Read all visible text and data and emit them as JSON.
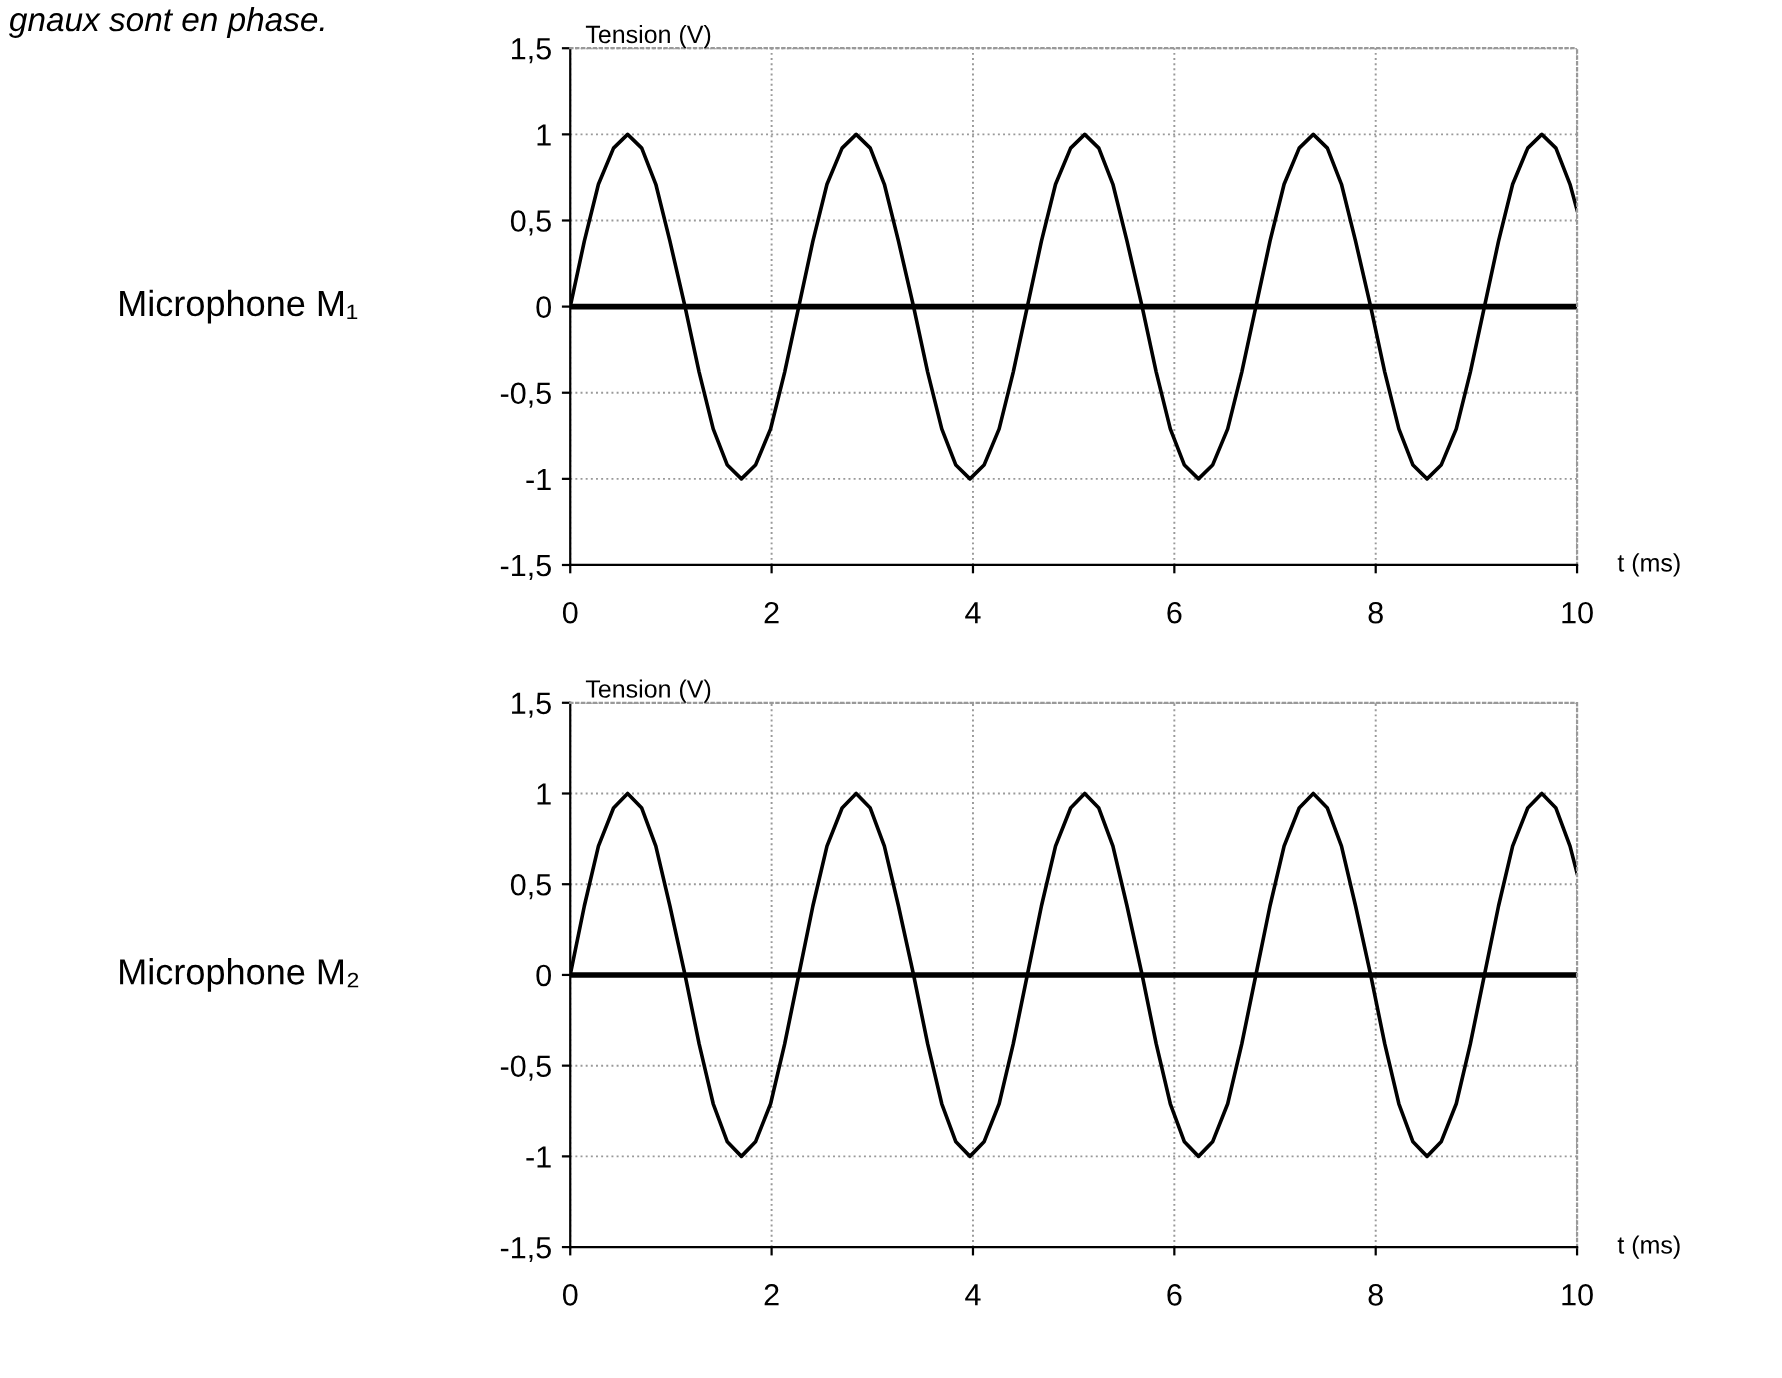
{
  "chart_data": [
    {
      "type": "line",
      "title": "gnaux sont en phase.",
      "annotations": [
        "Microphone M₁"
      ],
      "xlabel": "t (ms)",
      "ylabel": "Tension (V)",
      "x": [
        0,
        0.14,
        0.28,
        0.43,
        0.57,
        0.71,
        0.85,
        0.99,
        1.14,
        1.28,
        1.42,
        1.56,
        1.7,
        1.84,
        1.99,
        2.13,
        2.27,
        2.41,
        2.55,
        2.7,
        2.84,
        2.98,
        3.12,
        3.26,
        3.41,
        3.55,
        3.69,
        3.83,
        3.97,
        4.11,
        4.26,
        4.4,
        4.54,
        4.68,
        4.82,
        4.97,
        5.11,
        5.25,
        5.39,
        5.53,
        5.68,
        5.82,
        5.96,
        6.1,
        6.24,
        6.38,
        6.53,
        6.67,
        6.81,
        6.95,
        7.09,
        7.24,
        7.38,
        7.52,
        7.66,
        7.8,
        7.95,
        8.09,
        8.23,
        8.37,
        8.51,
        8.65,
        8.8,
        8.94,
        9.08,
        9.22,
        9.36,
        9.51,
        9.65,
        9.79,
        9.93,
        10
      ],
      "series": [
        {
          "color": "#000000",
          "values": [
            0,
            0.38,
            0.71,
            0.92,
            1,
            0.92,
            0.71,
            0.38,
            0,
            -0.38,
            -0.71,
            -0.92,
            -1,
            -0.92,
            -0.71,
            -0.38,
            0,
            0.38,
            0.71,
            0.92,
            1,
            0.92,
            0.71,
            0.38,
            0,
            -0.38,
            -0.71,
            -0.92,
            -1,
            -0.92,
            -0.71,
            -0.38,
            0,
            0.38,
            0.71,
            0.92,
            1,
            0.92,
            0.71,
            0.38,
            0,
            -0.38,
            -0.71,
            -0.92,
            -1,
            -0.92,
            -0.71,
            -0.38,
            0,
            0.38,
            0.71,
            0.92,
            1,
            0.92,
            0.71,
            0.38,
            0,
            -0.38,
            -0.71,
            -0.92,
            -1,
            -0.92,
            -0.71,
            -0.38,
            0,
            0.38,
            0.71,
            0.92,
            1,
            0.92,
            0.71,
            0.56
          ]
        }
      ],
      "xlim": [
        0,
        10
      ],
      "ylim": [
        -1.5,
        1.5
      ],
      "xticks": [
        0,
        2,
        4,
        6,
        8,
        10
      ],
      "yticks": [
        {
          "value": -1.5,
          "label": "-1,5"
        },
        -1,
        {
          "value": -0.5,
          "label": "-0,5"
        },
        0,
        {
          "value": 0.5,
          "label": "0,5"
        },
        1,
        {
          "value": 1.5,
          "label": "1,5"
        }
      ],
      "ref_lines": [
        {
          "axis": "y",
          "value": 0,
          "color": "#000000"
        }
      ],
      "grid": true,
      "legend": false,
      "line_style": "solid",
      "marker": "none"
    },
    {
      "type": "line",
      "annotations": [
        "Microphone M₂"
      ],
      "xlabel": "t (ms)",
      "ylabel": "Tension (V)",
      "x": [
        0,
        0.14,
        0.28,
        0.43,
        0.57,
        0.71,
        0.85,
        0.99,
        1.14,
        1.28,
        1.42,
        1.56,
        1.7,
        1.84,
        1.99,
        2.13,
        2.27,
        2.41,
        2.55,
        2.7,
        2.84,
        2.98,
        3.12,
        3.26,
        3.41,
        3.55,
        3.69,
        3.83,
        3.97,
        4.11,
        4.26,
        4.4,
        4.54,
        4.68,
        4.82,
        4.97,
        5.11,
        5.25,
        5.39,
        5.53,
        5.68,
        5.82,
        5.96,
        6.1,
        6.24,
        6.38,
        6.53,
        6.67,
        6.81,
        6.95,
        7.09,
        7.24,
        7.38,
        7.52,
        7.66,
        7.8,
        7.95,
        8.09,
        8.23,
        8.37,
        8.51,
        8.65,
        8.8,
        8.94,
        9.08,
        9.22,
        9.36,
        9.51,
        9.65,
        9.79,
        9.93,
        10
      ],
      "series": [
        {
          "color": "#000000",
          "values": [
            0,
            0.38,
            0.71,
            0.92,
            1,
            0.92,
            0.71,
            0.38,
            0,
            -0.38,
            -0.71,
            -0.92,
            -1,
            -0.92,
            -0.71,
            -0.38,
            0,
            0.38,
            0.71,
            0.92,
            1,
            0.92,
            0.71,
            0.38,
            0,
            -0.38,
            -0.71,
            -0.92,
            -1,
            -0.92,
            -0.71,
            -0.38,
            0,
            0.38,
            0.71,
            0.92,
            1,
            0.92,
            0.71,
            0.38,
            0,
            -0.38,
            -0.71,
            -0.92,
            -1,
            -0.92,
            -0.71,
            -0.38,
            0,
            0.38,
            0.71,
            0.92,
            1,
            0.92,
            0.71,
            0.38,
            0,
            -0.38,
            -0.71,
            -0.92,
            -1,
            -0.92,
            -0.71,
            -0.38,
            0,
            0.38,
            0.71,
            0.92,
            1,
            0.92,
            0.71,
            0.56
          ]
        }
      ],
      "xlim": [
        0,
        10
      ],
      "ylim": [
        -1.5,
        1.5
      ],
      "xticks": [
        0,
        2,
        4,
        6,
        8,
        10
      ],
      "yticks": [
        {
          "value": -1.5,
          "label": "-1,5"
        },
        -1,
        {
          "value": -0.5,
          "label": "-0,5"
        },
        0,
        {
          "value": 0.5,
          "label": "0,5"
        },
        1,
        {
          "value": 1.5,
          "label": "1,5"
        }
      ],
      "ref_lines": [
        {
          "axis": "y",
          "value": 0,
          "color": "#000000"
        }
      ],
      "grid": true,
      "legend": false,
      "line_style": "solid",
      "marker": "none"
    }
  ]
}
